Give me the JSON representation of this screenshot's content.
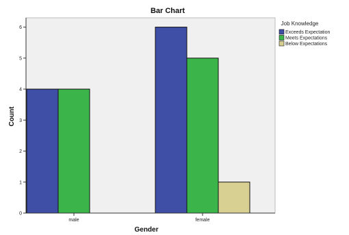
{
  "chart_data": {
    "type": "bar",
    "title": "Bar Chart",
    "xlabel": "Gender",
    "ylabel": "Count",
    "categories": [
      "male",
      "female"
    ],
    "series": [
      {
        "name": "Exceeds Expectation",
        "values": [
          4,
          6
        ],
        "color": "#3f4fa6"
      },
      {
        "name": "Meets Expectations",
        "values": [
          4,
          5
        ],
        "color": "#3bb54a"
      },
      {
        "name": "Below Expectations",
        "values": [
          0,
          1
        ],
        "color": "#d8cf92"
      }
    ],
    "ylim": [
      0,
      6.3
    ],
    "yticks": [
      0,
      1,
      2,
      3,
      4,
      5,
      6
    ],
    "legend": {
      "title": "Job Knowledge",
      "placement": "right"
    },
    "grid": false,
    "plot_background": "#f0f0f0"
  }
}
